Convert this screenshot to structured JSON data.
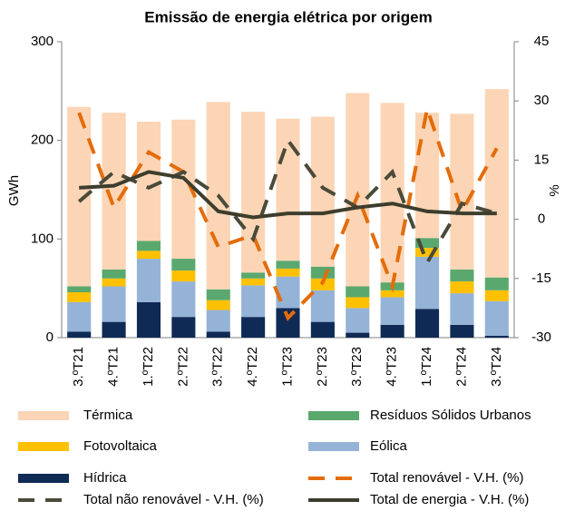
{
  "chart_data": {
    "type": "bar",
    "title": "Emissão de energia elétrica por origem",
    "y_label": "GWh",
    "y2_label": "%",
    "categories": [
      "3.ºT21",
      "4.ºT21",
      "1.ºT22",
      "2.ºT22",
      "3.ºT22",
      "4.ºT22",
      "1.ºT23",
      "2.ºT23",
      "3.ºT23",
      "4.ºT23",
      "1.ºT24",
      "2.ºT24",
      "3.ºT24"
    ],
    "stacked": true,
    "series": [
      {
        "name": "Hídrica",
        "color": "#0f2a55",
        "values": [
          6,
          16,
          36,
          21,
          6,
          21,
          30,
          16,
          5,
          13,
          29,
          13,
          2
        ]
      },
      {
        "name": "Eólica",
        "color": "#95b3d7",
        "values": [
          30,
          36,
          44,
          36,
          22,
          32,
          32,
          32,
          25,
          28,
          53,
          32,
          35
        ]
      },
      {
        "name": "Fotovoltaica",
        "color": "#ffc000",
        "values": [
          10,
          8,
          8,
          11,
          10,
          7,
          8,
          12,
          11,
          7,
          9,
          12,
          11
        ]
      },
      {
        "name": "Resíduos Sólidos Urbanos",
        "color": "#5aa86e",
        "values": [
          6,
          9,
          10,
          12,
          11,
          6,
          8,
          12,
          11,
          8,
          10,
          12,
          13
        ]
      },
      {
        "name": "Térmica",
        "color": "#fbd5b5",
        "values": [
          182,
          159,
          121,
          141,
          190,
          163,
          144,
          152,
          196,
          182,
          127,
          158,
          191
        ]
      },
      {
        "name": "Total renovável - V.H. (%)",
        "type": "line",
        "dash": true,
        "axis": "y2",
        "color": "#e46c0a",
        "values": [
          27,
          3,
          17,
          12,
          -7,
          -4,
          -25,
          -16,
          6,
          -17,
          28,
          2,
          18
        ]
      },
      {
        "name": "Total não renovável - V.H. (%)",
        "type": "line",
        "dash": true,
        "axis": "y2",
        "color": "#4a4a3a",
        "values": [
          4.5,
          12,
          8,
          12,
          6,
          -5,
          20,
          8,
          3,
          12,
          -11,
          4,
          1.5
        ]
      },
      {
        "name": "Total de energia - V.H. (%)",
        "type": "line",
        "axis": "y2",
        "color": "#3d3d2d",
        "values": [
          8,
          8.5,
          12,
          10.5,
          2,
          0.5,
          1.5,
          1.5,
          3,
          4,
          2,
          1.5,
          1.5
        ]
      }
    ],
    "ylim": [
      0,
      300
    ],
    "yticks": [
      0,
      100,
      200,
      300
    ],
    "y2lim": [
      -30,
      45
    ],
    "y2ticks": [
      -30,
      -15,
      0,
      15,
      30,
      45
    ]
  }
}
